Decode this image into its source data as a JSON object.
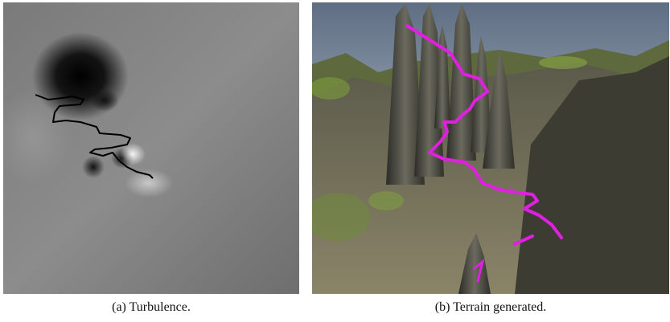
{
  "figure": {
    "subfigures": [
      {
        "caption": "(a) Turbulence."
      },
      {
        "caption": "(b) Terrain generated."
      }
    ]
  }
}
